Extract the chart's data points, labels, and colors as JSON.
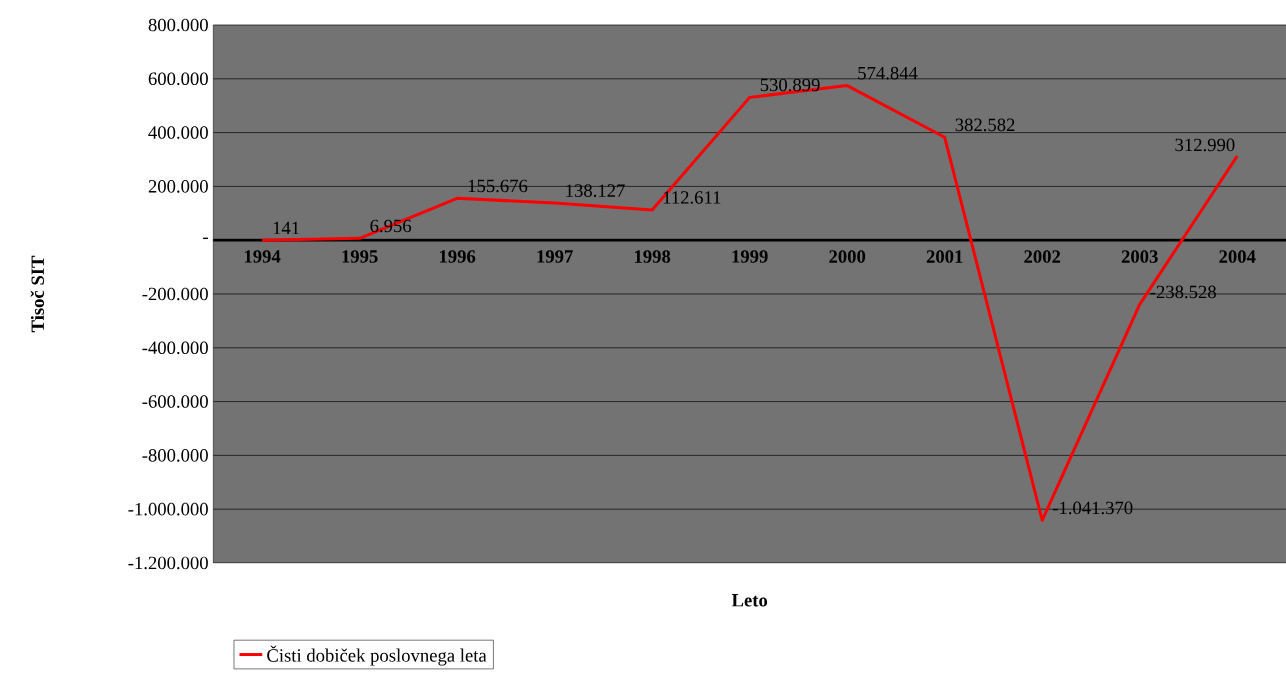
{
  "chart_data": {
    "type": "line",
    "xlabel": "Leto",
    "ylabel": "Tisoč SIT",
    "categories": [
      "1994",
      "1995",
      "1996",
      "1997",
      "1998",
      "1999",
      "2000",
      "2001",
      "2002",
      "2003",
      "2004"
    ],
    "series": [
      {
        "name": "Čisti dobiček poslovnega leta",
        "color": "#ff0000",
        "values": [
          141,
          6956,
          155676,
          138127,
          112611,
          530899,
          574844,
          382582,
          -1041370,
          -238528,
          312990
        ],
        "value_labels": [
          "141",
          "6.956",
          "155.676",
          "138.127",
          "112.611",
          "530.899",
          "574.844",
          "382.582",
          "-1.041.370",
          "-238.528",
          "312.990"
        ]
      }
    ],
    "ylim": [
      -1200000,
      800000
    ],
    "yticks": [
      {
        "value": -1200000,
        "label": "-1.200.000"
      },
      {
        "value": -1000000,
        "label": "-1.000.000"
      },
      {
        "value": -800000,
        "label": "-800.000"
      },
      {
        "value": -600000,
        "label": "-600.000"
      },
      {
        "value": -400000,
        "label": "-400.000"
      },
      {
        "value": -200000,
        "label": "-200.000"
      },
      {
        "value": 0,
        "label": "-"
      },
      {
        "value": 200000,
        "label": "200.000"
      },
      {
        "value": 400000,
        "label": "400.000"
      },
      {
        "value": 600000,
        "label": "600.000"
      },
      {
        "value": 800000,
        "label": "800.000"
      }
    ],
    "grid": "y",
    "legend": "bottom"
  }
}
